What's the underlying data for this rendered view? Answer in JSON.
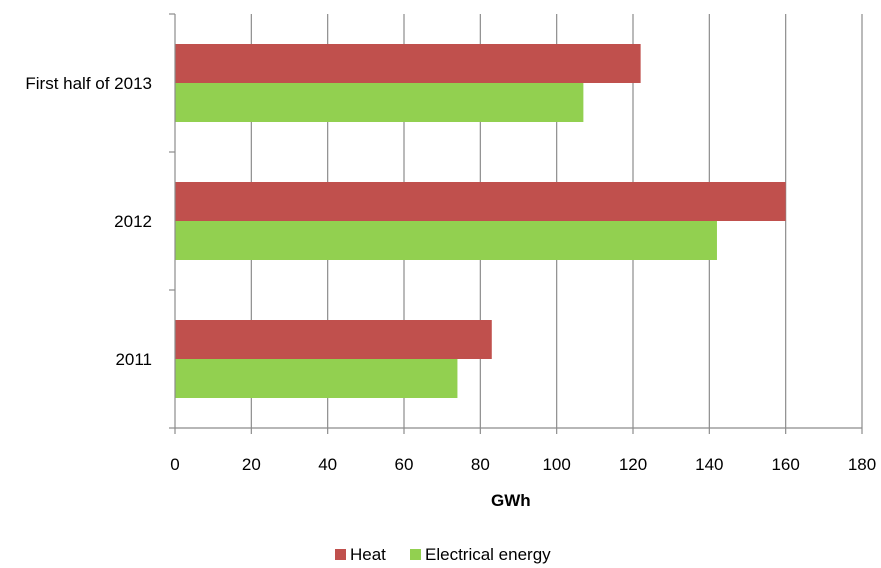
{
  "chart_data": {
    "type": "bar",
    "orientation": "horizontal",
    "categories": [
      "2011",
      "2012",
      "First half of 2013"
    ],
    "series": [
      {
        "name": "Heat",
        "values": [
          83,
          160,
          122
        ],
        "color": "#c0504d"
      },
      {
        "name": "Electrical energy",
        "values": [
          74,
          142,
          107
        ],
        "color": "#92d050"
      }
    ],
    "xlabel": "GWh",
    "ylabel": "",
    "xlim": [
      0,
      180
    ],
    "xticks": [
      0,
      20,
      40,
      60,
      80,
      100,
      120,
      140,
      160,
      180
    ],
    "grid": "vertical",
    "legend_position": "bottom"
  }
}
